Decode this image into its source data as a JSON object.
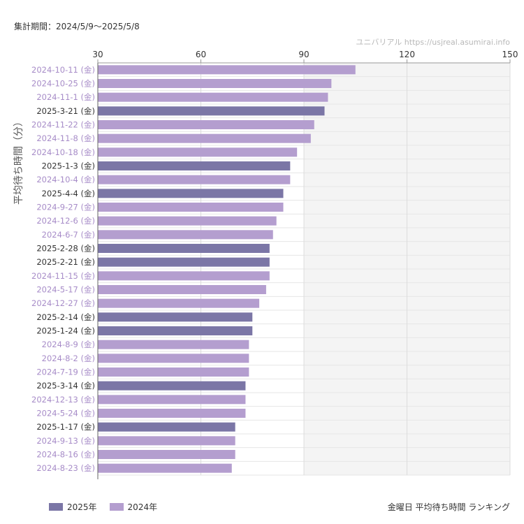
{
  "period_text": "集計期間：2024/5/9〜2025/5/8",
  "source_text": "ユニバリアル  https://usjreal.asumirai.info",
  "caption": "金曜日 平均待ち時間 ランキング",
  "legend": [
    {
      "label": "2025年",
      "color": "#7b76a6"
    },
    {
      "label": "2024年",
      "color": "#b49ecf"
    }
  ],
  "chart_data": {
    "type": "bar",
    "orientation": "horizontal",
    "ylabel": "平均待ち時間（分）",
    "xlim": [
      30,
      150
    ],
    "x_ticks": [
      30,
      60,
      90,
      120,
      150
    ],
    "shaded_region": [
      90,
      150
    ],
    "grid": true,
    "legend_position": "bottom-left",
    "colors": {
      "2025年": "#7b76a6",
      "2024年": "#b49ecf"
    },
    "label_colors": {
      "2025年": "#333333",
      "2024年": "#a78cc8"
    },
    "categories": [
      "2024-10-11 (金)",
      "2024-10-25 (金)",
      "2024-11-1 (金)",
      "2025-3-21 (金)",
      "2024-11-22 (金)",
      "2024-11-8 (金)",
      "2024-10-18 (金)",
      "2025-1-3 (金)",
      "2024-10-4 (金)",
      "2025-4-4 (金)",
      "2024-9-27 (金)",
      "2024-12-6 (金)",
      "2024-6-7 (金)",
      "2025-2-28 (金)",
      "2025-2-21 (金)",
      "2024-11-15 (金)",
      "2024-5-17 (金)",
      "2024-12-27 (金)",
      "2025-2-14 (金)",
      "2025-1-24 (金)",
      "2024-8-9 (金)",
      "2024-8-2 (金)",
      "2024-7-19 (金)",
      "2025-3-14 (金)",
      "2024-12-13 (金)",
      "2024-5-24 (金)",
      "2025-1-17 (金)",
      "2024-9-13 (金)",
      "2024-8-16 (金)",
      "2024-8-23 (金)"
    ],
    "years": [
      "2024年",
      "2024年",
      "2024年",
      "2025年",
      "2024年",
      "2024年",
      "2024年",
      "2025年",
      "2024年",
      "2025年",
      "2024年",
      "2024年",
      "2024年",
      "2025年",
      "2025年",
      "2024年",
      "2024年",
      "2024年",
      "2025年",
      "2025年",
      "2024年",
      "2024年",
      "2024年",
      "2025年",
      "2024年",
      "2024年",
      "2025年",
      "2024年",
      "2024年",
      "2024年"
    ],
    "values": [
      105,
      98,
      97,
      96,
      93,
      92,
      88,
      86,
      86,
      84,
      84,
      82,
      81,
      80,
      80,
      80,
      79,
      77,
      75,
      75,
      74,
      74,
      74,
      73,
      73,
      73,
      70,
      70,
      70,
      69
    ]
  }
}
